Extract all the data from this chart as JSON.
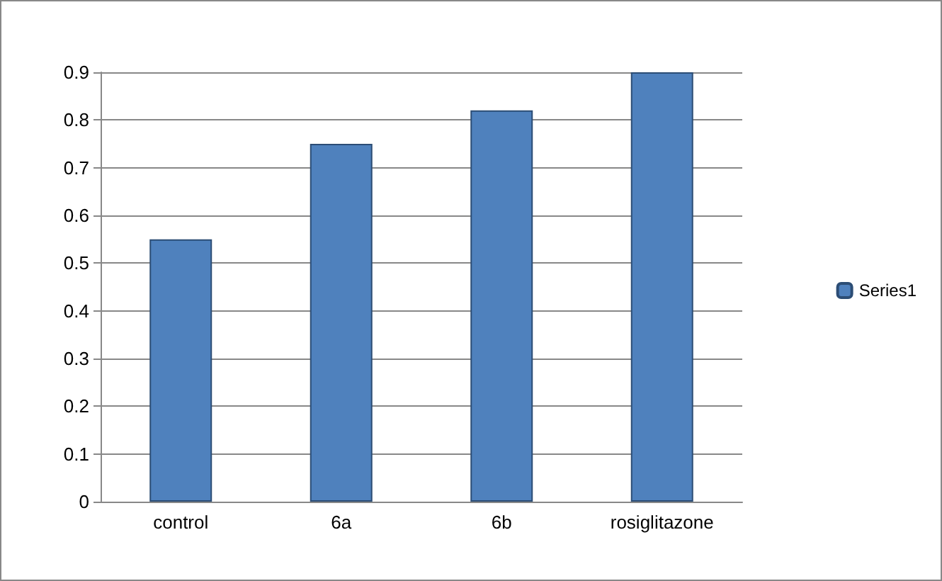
{
  "chart_data": {
    "type": "bar",
    "categories": [
      "control",
      "6a",
      "6b",
      "rosiglitazone"
    ],
    "series": [
      {
        "name": "Series1",
        "color": "#4f81bd",
        "values": [
          0.55,
          0.75,
          0.82,
          0.9
        ]
      }
    ],
    "ylim": [
      0,
      0.9
    ],
    "yticks": [
      0,
      0.1,
      0.2,
      0.3,
      0.4,
      0.5,
      0.6,
      0.7,
      0.8,
      0.9
    ],
    "grid": "y",
    "legend": "right"
  }
}
